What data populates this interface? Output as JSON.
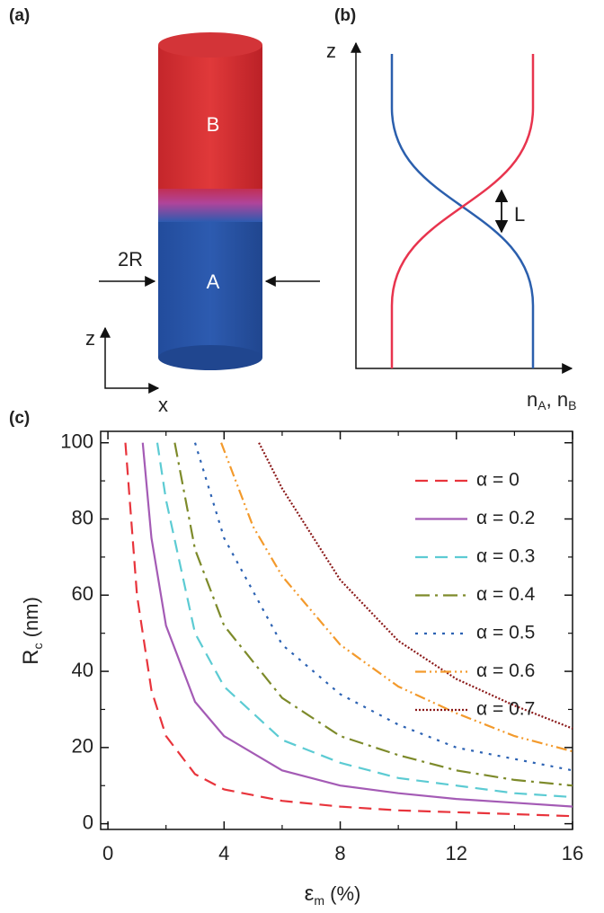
{
  "panel_a": {
    "label": "(a)",
    "top_label": "B",
    "bottom_label": "A",
    "width_label": "2R",
    "z_axis": "z",
    "x_axis": "x"
  },
  "panel_b": {
    "label": "(b)",
    "z_axis": "z",
    "gap_label": "L",
    "x_axis": {
      "n1": "n",
      "s1": "A",
      "sep": ", ",
      "n2": "n",
      "s2": "B"
    }
  },
  "chart_data": {
    "type": "line",
    "panel_label": "(c)",
    "x_label": {
      "main": "ε",
      "sub": "m",
      "rest": " (%)"
    },
    "y_label": {
      "main": "R",
      "sub": "c",
      "rest": " (nm)"
    },
    "xlim": [
      -0.25,
      16
    ],
    "ylim": [
      -1.5,
      103
    ],
    "xticks": [
      0,
      4,
      8,
      12,
      16
    ],
    "yticks": [
      0,
      20,
      40,
      60,
      80,
      100
    ],
    "xminorticks": [
      2,
      6,
      10,
      14
    ],
    "yminorticks": [
      10,
      30,
      50,
      70,
      90
    ],
    "legend": "upper right",
    "series": [
      {
        "name": "α = 0",
        "color": "#e8343c",
        "style": "dashed",
        "x": [
          0.6,
          1,
          1.5,
          2,
          3,
          4,
          6,
          8,
          10,
          12,
          14,
          16
        ],
        "values": [
          100,
          60,
          35,
          23,
          13,
          9,
          6,
          4.5,
          3.5,
          3,
          2.5,
          2
        ]
      },
      {
        "name": "α = 0.2",
        "color": "#a45bb5",
        "style": "solid",
        "x": [
          1.2,
          1.5,
          2,
          3,
          4,
          6,
          8,
          10,
          12,
          14,
          16
        ],
        "values": [
          100,
          75,
          52,
          32,
          23,
          14,
          10,
          8,
          6.5,
          5.5,
          4.5
        ]
      },
      {
        "name": "α = 0.3",
        "color": "#5ccbd3",
        "style": "dashed",
        "x": [
          1.7,
          2,
          3,
          4,
          6,
          8,
          10,
          12,
          14,
          16
        ],
        "values": [
          100,
          85,
          50,
          36,
          22,
          16,
          12,
          10,
          8,
          7
        ]
      },
      {
        "name": "α = 0.4",
        "color": "#7d8a2a",
        "style": "dash-dot",
        "x": [
          2.3,
          3,
          4,
          6,
          8,
          10,
          12,
          14,
          16
        ],
        "values": [
          100,
          72,
          52,
          33,
          23,
          18,
          14,
          11.5,
          10
        ]
      },
      {
        "name": "α = 0.5",
        "color": "#2c62b3",
        "style": "dotted",
        "x": [
          3,
          4,
          6,
          8,
          10,
          12,
          14,
          16
        ],
        "values": [
          100,
          75,
          47,
          34,
          26,
          20,
          17,
          14
        ]
      },
      {
        "name": "α = 0.6",
        "color": "#f39a2c",
        "style": "dash-dot-dot",
        "x": [
          3.9,
          5,
          6,
          8,
          10,
          12,
          14,
          16
        ],
        "values": [
          100,
          78,
          65,
          47,
          36,
          29,
          23,
          19
        ]
      },
      {
        "name": "α = 0.7",
        "color": "#8b1a1a",
        "style": "fine-dotted",
        "x": [
          5.2,
          6,
          8,
          10,
          12,
          14,
          16
        ],
        "values": [
          100,
          88,
          64,
          48,
          38,
          31,
          25
        ]
      }
    ]
  }
}
